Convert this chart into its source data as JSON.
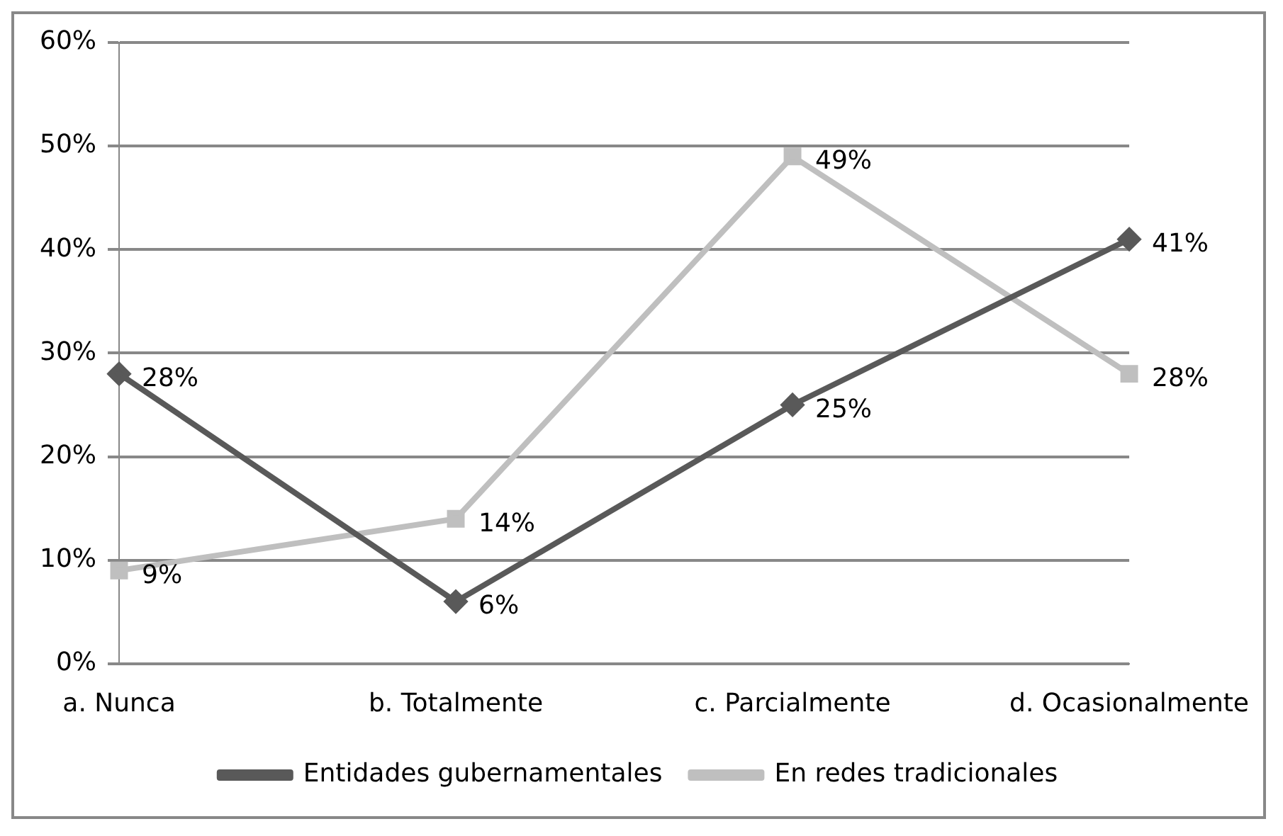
{
  "chart_data": {
    "type": "line",
    "categories": [
      "a. Nunca",
      "b. Totalmente",
      "c. Parcialmente",
      "d. Ocasionalmente"
    ],
    "series": [
      {
        "name": "Entidades gubernamentales",
        "color": "#595959",
        "marker": "diamond",
        "values": [
          28,
          6,
          25,
          41
        ],
        "value_labels": [
          "28%",
          "6%",
          "25%",
          "41%"
        ]
      },
      {
        "name": "En redes tradicionales",
        "color": "#bfbfbf",
        "marker": "square",
        "values": [
          9,
          14,
          49,
          28
        ],
        "value_labels": [
          "9%",
          "14%",
          "49%",
          "28%"
        ]
      }
    ],
    "ylim": [
      0,
      60
    ],
    "yticks": [
      {
        "value": 0,
        "label": "0%"
      },
      {
        "value": 10,
        "label": "10%"
      },
      {
        "value": 20,
        "label": "20%"
      },
      {
        "value": 30,
        "label": "30%"
      },
      {
        "value": 40,
        "label": "40%"
      },
      {
        "value": 50,
        "label": "50%"
      },
      {
        "value": 60,
        "label": "60%"
      }
    ],
    "grid": "y",
    "legend": "bottom",
    "line_style": "solid"
  }
}
